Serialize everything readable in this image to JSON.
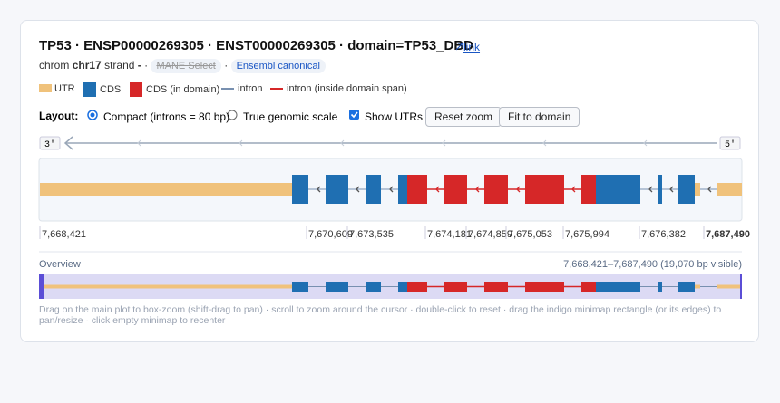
{
  "header": {
    "title": "TP53 · ENSP00000269305 · ENST00000269305 · domain=TP53_DBD",
    "link": "link",
    "chrom_label": "chrom",
    "chrom": "chr17",
    "strand_label": "strand",
    "strand": "-",
    "sep": "·",
    "badges": [
      "MANE Select",
      "Ensembl canonical"
    ]
  },
  "legend": [
    "UTR",
    "CDS",
    "CDS (in domain)",
    "intron",
    "intron (inside domain span)"
  ],
  "controls": {
    "layout_label": "Layout:",
    "radios": [
      "Compact (introns = 80 bp)",
      "True genomic scale"
    ],
    "checkbox": "Show UTRs",
    "buttons": [
      "Reset zoom",
      "Fit to domain"
    ]
  },
  "track": {
    "left_end": "3'",
    "right_end": "5'",
    "ticks": [
      "7,668,421",
      "7,670,609",
      "7,673,535",
      "7,674,181",
      "7,674,859",
      "7,675,053",
      "7,675,994",
      "7,676,382",
      "7,687,490"
    ]
  },
  "overview": {
    "title": "Overview",
    "range": "7,668,421–7,687,490 (19,070 bp visible)"
  },
  "help": "Drag on the main plot to box-zoom (shift-drag to pan) · scroll to zoom around the cursor · double-click to reset · drag the indigo minimap rectangle (or its edges) to pan/resize · click empty minimap to recenter"
}
